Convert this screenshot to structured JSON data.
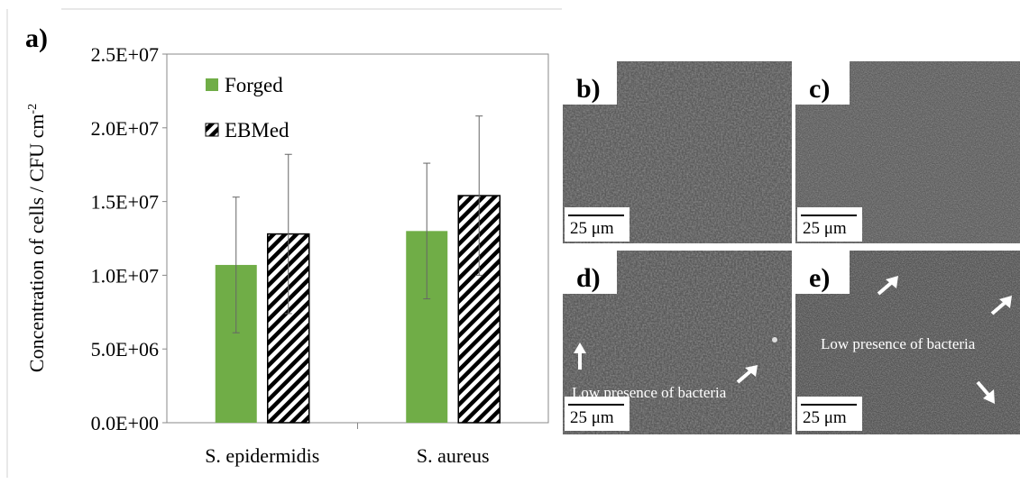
{
  "chart_data": {
    "type": "bar",
    "panel_label": "a)",
    "y_label": "Concentration of cells / CFU cm",
    "y_label_sup": "-2",
    "categories": [
      "S. epidermidis",
      "S. aureus"
    ],
    "series": [
      {
        "name": "Forged",
        "color": "#70ad47",
        "fill": "solid",
        "values": [
          10700000,
          13000000
        ],
        "errors": [
          4600000,
          4600000
        ]
      },
      {
        "name": "EBMed",
        "color": "#000000",
        "fill": "hatch",
        "values": [
          12800000,
          15400000
        ],
        "errors": [
          5400000,
          5400000
        ]
      }
    ],
    "ylim": [
      0,
      25000000
    ],
    "yticks": [
      {
        "value": 0,
        "label": "0.0E+00"
      },
      {
        "value": 5000000,
        "label": "5.0E+06"
      },
      {
        "value": 10000000,
        "label": "1.0E+07"
      },
      {
        "value": 15000000,
        "label": "1.5E+07"
      },
      {
        "value": 20000000,
        "label": "2.0E+07"
      },
      {
        "value": 25000000,
        "label": "2.5E+07"
      }
    ],
    "grid": false,
    "legend": "upper left"
  },
  "images": [
    {
      "label": "b)",
      "scale_bar": "25 μm"
    },
    {
      "label": "c)",
      "scale_bar": "25 μm"
    },
    {
      "label": "d)",
      "scale_bar": "25 μm",
      "annotation": "Low presence of bacteria"
    },
    {
      "label": "e)",
      "scale_bar": "25 μm",
      "annotation": "Low presence of bacteria"
    }
  ]
}
